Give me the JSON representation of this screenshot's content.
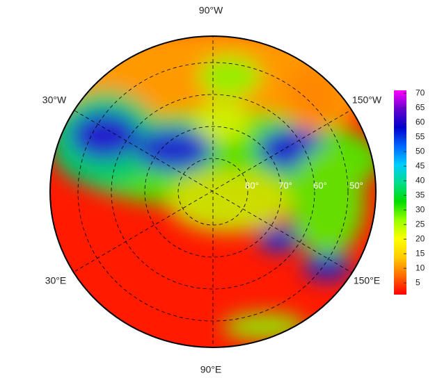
{
  "map": {
    "longitude_labels": [
      "90°W",
      "30°W",
      "150°W",
      "30°E",
      "150°E",
      "90°E"
    ],
    "latitude_labels": [
      "80°",
      "70°",
      "60°",
      "50°"
    ]
  },
  "colorbar": {
    "lim": [
      1,
      71
    ],
    "ticks": [
      5,
      10,
      15,
      20,
      25,
      30,
      35,
      40,
      45,
      50,
      55,
      60,
      65,
      70
    ],
    "colors": [
      "#ff0000",
      "#ff6a00",
      "#ffcc00",
      "#ffff00",
      "#99ff00",
      "#00dd00",
      "#00dd88",
      "#00ccff",
      "#0066ff",
      "#0000cc",
      "#6600cc",
      "#ff00ff"
    ]
  }
}
